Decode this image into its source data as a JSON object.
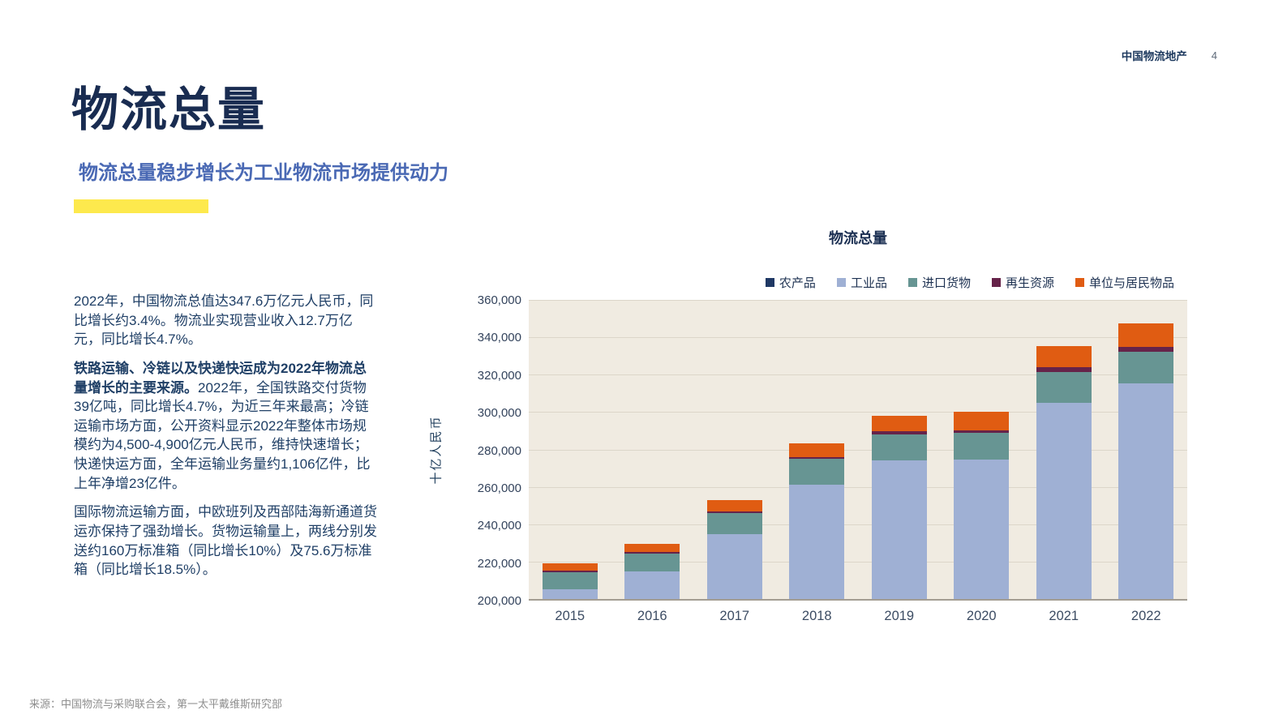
{
  "header": {
    "brand": "中国物流地产",
    "page_number": "4"
  },
  "title": "物流总量",
  "subtitle": "物流总量稳步增长为工业物流市场提供动力",
  "accent_color": "#fde94d",
  "body": {
    "p1": "2022年，中国物流总值达347.6万亿元人民币，同比增长约3.4%。物流业实现营业收入12.7万亿元，同比增长4.7%。",
    "p2_lead": "铁路运输、冷链以及快递快运成为2022年物流总量增长的主要来源。",
    "p2_rest": "2022年，全国铁路交付货物39亿吨，同比增长4.7%，为近三年来最高；冷链运输市场方面，公开资料显示2022年整体市场规模约为4,500-4,900亿元人民币，维持快速增长；快递快运方面，全年运输业务量约1,106亿件，比上年净增23亿件。",
    "p3": "国际物流运输方面，中欧班列及西部陆海新通道货运亦保持了强劲增长。货物运输量上，两线分别发送约160万标准箱（同比增长10%）及75.6万标准箱（同比增长18.5%）。"
  },
  "source": "来源：中国物流与采购联合会，第一太平戴维斯研究部",
  "chart_data": {
    "type": "bar",
    "stacked": true,
    "title": "物流总量",
    "ylabel": "十亿人民币",
    "xlabel": "",
    "categories": [
      "2015",
      "2016",
      "2017",
      "2018",
      "2019",
      "2020",
      "2021",
      "2022"
    ],
    "series": [
      {
        "name": "农产品",
        "color": "#1f3864",
        "values": [
          3400,
          3600,
          3900,
          4200,
          4600,
          4900,
          5200,
          5300
        ]
      },
      {
        "name": "工业品",
        "color": "#9fb0d4",
        "values": [
          201900,
          211000,
          231000,
          256800,
          269600,
          269900,
          299600,
          309900
        ]
      },
      {
        "name": "进口货物",
        "color": "#679593",
        "values": [
          9000,
          9500,
          11100,
          13900,
          14000,
          13900,
          16700,
          17000
        ]
      },
      {
        "name": "再生资源",
        "color": "#662349",
        "values": [
          800,
          900,
          1000,
          1200,
          1400,
          1600,
          2500,
          2800
        ]
      },
      {
        "name": "单位与居民物品",
        "color": "#e05c12",
        "values": [
          4100,
          4700,
          5800,
          7000,
          8400,
          9800,
          11200,
          12600
        ]
      }
    ],
    "totals": [
      219200,
      229700,
      252800,
      283100,
      298000,
      300100,
      335200,
      347600
    ],
    "ylim": [
      200000,
      360000
    ],
    "ytick_step": 20000,
    "yticks": [
      {
        "value": 200000,
        "label": "200,000"
      },
      {
        "value": 220000,
        "label": "220,000"
      },
      {
        "value": 240000,
        "label": "240,000"
      },
      {
        "value": 260000,
        "label": "260,000"
      },
      {
        "value": 280000,
        "label": "280,000"
      },
      {
        "value": 300000,
        "label": "300,000"
      },
      {
        "value": 320000,
        "label": "320,000"
      },
      {
        "value": 340000,
        "label": "340,000"
      },
      {
        "value": 360000,
        "label": "360,000"
      }
    ],
    "grid": true,
    "legend_position": "top-right",
    "plot_bg": "#f0ebe1"
  }
}
